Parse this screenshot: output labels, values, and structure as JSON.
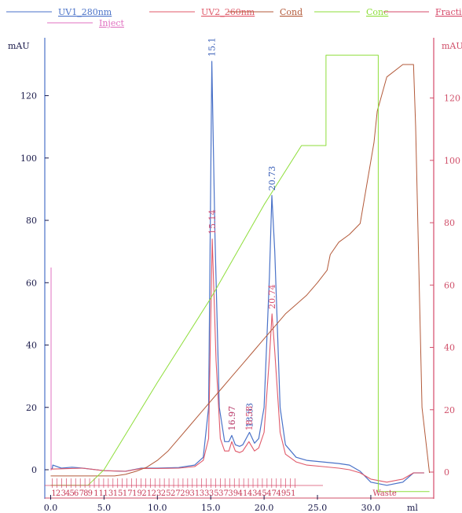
{
  "chart_data": {
    "type": "line",
    "legend": [
      {
        "name": "UV1_280nm",
        "color": "#4a72c8"
      },
      {
        "name": "UV2_260nm",
        "color": "#e05a6a"
      },
      {
        "name": "Cond",
        "color": "#b35a3a"
      },
      {
        "name": "Conc",
        "color": "#8ede3a"
      },
      {
        "name": "Fractions",
        "color": "#d64a6a"
      },
      {
        "name": "Inject",
        "color": "#e070c0"
      }
    ],
    "xlabel": "ml",
    "ylabel_left": "mAU",
    "ylabel_right": "mAU",
    "x_ticks": [
      "0.0",
      "5.0",
      "10.0",
      "15.0",
      "20.0",
      "25.0",
      "30.0"
    ],
    "x_tick_values": [
      0,
      5,
      10,
      15,
      20,
      25,
      30
    ],
    "y_ticks_left": [
      "0",
      "20",
      "40",
      "60",
      "80",
      "100",
      "120"
    ],
    "y_ticks_right": [
      "0",
      "20",
      "40",
      "60",
      "80",
      "100",
      "120"
    ],
    "y_tick_values": [
      0,
      20,
      40,
      60,
      80,
      100,
      120
    ],
    "xlim": [
      -0.3,
      35.5
    ],
    "ylim": [
      -3,
      131
    ],
    "peak_labels": [
      {
        "text": "15.1",
        "series": "UV1_280nm",
        "x": 15.1,
        "y": 131
      },
      {
        "text": "16.97",
        "series": "UV1_280nm",
        "x": 16.97,
        "y": 11
      },
      {
        "text": "18.63",
        "series": "UV1_280nm",
        "x": 18.63,
        "y": 12
      },
      {
        "text": "20.73",
        "series": "UV1_280nm",
        "x": 20.73,
        "y": 88
      },
      {
        "text": "15.14",
        "series": "UV2_260nm",
        "x": 15.14,
        "y": 74
      },
      {
        "text": "16.97",
        "series": "UV2_260nm",
        "x": 16.97,
        "y": 11
      },
      {
        "text": "18.58",
        "series": "UV2_260nm",
        "x": 18.58,
        "y": 11
      },
      {
        "text": "20.74",
        "series": "UV2_260nm",
        "x": 20.74,
        "y": 50
      }
    ],
    "fraction_labels": [
      "1",
      "2",
      "3",
      "4",
      "5",
      "6",
      "7",
      "8",
      "9",
      "11",
      "13",
      "15",
      "17",
      "19",
      "21",
      "23",
      "25",
      "27",
      "29",
      "31",
      "33",
      "35",
      "37",
      "39",
      "41",
      "43",
      "45",
      "47",
      "49",
      "51"
    ],
    "fraction_label_x": [
      0.3,
      0.7,
      1.2,
      1.6,
      2.0,
      2.4,
      2.9,
      3.3,
      3.7,
      4.5,
      5.4,
      6.3,
      7.2,
      8.1,
      9.0,
      9.9,
      10.8,
      11.7,
      12.6,
      13.5,
      14.4,
      15.3,
      16.2,
      17.1,
      18.0,
      18.9,
      19.8,
      20.7,
      21.6,
      22.5
    ],
    "waste_label": "Waste",
    "waste_x": 31.3,
    "series": [
      {
        "name": "UV1_280nm",
        "x": [
          0,
          0.15,
          0.2,
          1,
          2,
          3,
          5,
          7,
          8.5,
          10,
          12,
          13.5,
          14.3,
          14.8,
          15.1,
          15.4,
          15.8,
          16.3,
          16.7,
          16.97,
          17.3,
          17.7,
          18.0,
          18.63,
          19.1,
          19.5,
          20.0,
          20.5,
          20.73,
          21.0,
          21.5,
          22.0,
          23,
          24,
          25.5,
          27,
          28,
          29,
          30,
          31.5,
          33,
          34,
          35
        ],
        "y": [
          0.3,
          0.3,
          1.5,
          0.5,
          0.8,
          0.5,
          -0.3,
          -0.5,
          0.5,
          0.5,
          0.7,
          1.5,
          4,
          20,
          131,
          75,
          20,
          9,
          9,
          11,
          8,
          7.5,
          8,
          12,
          8.5,
          10,
          20,
          62,
          88,
          70,
          20,
          8,
          4,
          3,
          2.5,
          2,
          1.5,
          -0.5,
          -4,
          -5,
          -4,
          -1,
          -1
        ]
      },
      {
        "name": "UV2_260nm",
        "x": [
          0,
          1,
          3,
          5,
          7,
          8.5,
          10,
          12,
          13.5,
          14.3,
          14.8,
          15.14,
          15.5,
          15.9,
          16.3,
          16.7,
          16.97,
          17.3,
          17.7,
          18.0,
          18.58,
          19.1,
          19.5,
          20.0,
          20.5,
          20.74,
          21.0,
          21.5,
          22,
          23,
          24,
          25.5,
          27,
          28,
          29,
          30,
          31.5,
          33,
          34,
          35
        ],
        "y": [
          0.2,
          0.3,
          0.5,
          -0.3,
          -0.5,
          0.4,
          0.4,
          0.5,
          1,
          3,
          10,
          74,
          35,
          10,
          6,
          6,
          9,
          6,
          5.5,
          6,
          9,
          6,
          7,
          12,
          36,
          50,
          38,
          12,
          5,
          2.5,
          1.5,
          1,
          0.5,
          0,
          -1,
          -3,
          -4,
          -3,
          -1,
          -1
        ]
      },
      {
        "name": "Cond",
        "x": [
          0,
          4,
          6,
          7,
          8,
          9,
          10,
          11,
          12,
          13,
          14,
          15,
          16,
          17,
          18,
          19,
          20,
          21,
          22,
          23,
          24,
          25,
          25.9,
          26.2,
          27,
          28,
          29,
          30.3,
          30.6,
          31.5,
          33,
          34,
          34.2,
          34.8,
          35.5
        ],
        "y": [
          -2,
          -2,
          -2,
          -1.5,
          -0.5,
          0.8,
          3,
          6,
          10,
          14,
          18,
          22,
          26,
          30,
          34,
          38,
          42,
          46,
          50,
          53,
          56,
          60,
          64,
          69,
          73,
          75.5,
          79,
          105,
          115,
          126,
          130,
          130,
          110,
          20,
          -1
        ]
      },
      {
        "name": "Conc",
        "x": [
          0,
          3.5,
          5,
          10,
          15,
          20,
          23.5,
          25.8,
          25.8,
          30.7,
          30.7,
          35.5
        ],
        "y": [
          -5,
          -5,
          0,
          28,
          55,
          85,
          104,
          104,
          133,
          133,
          -7,
          -7
        ]
      }
    ],
    "right_axis_series": {
      "name": "Cond",
      "scale_note": "right axis ticks share left axis positions"
    }
  }
}
